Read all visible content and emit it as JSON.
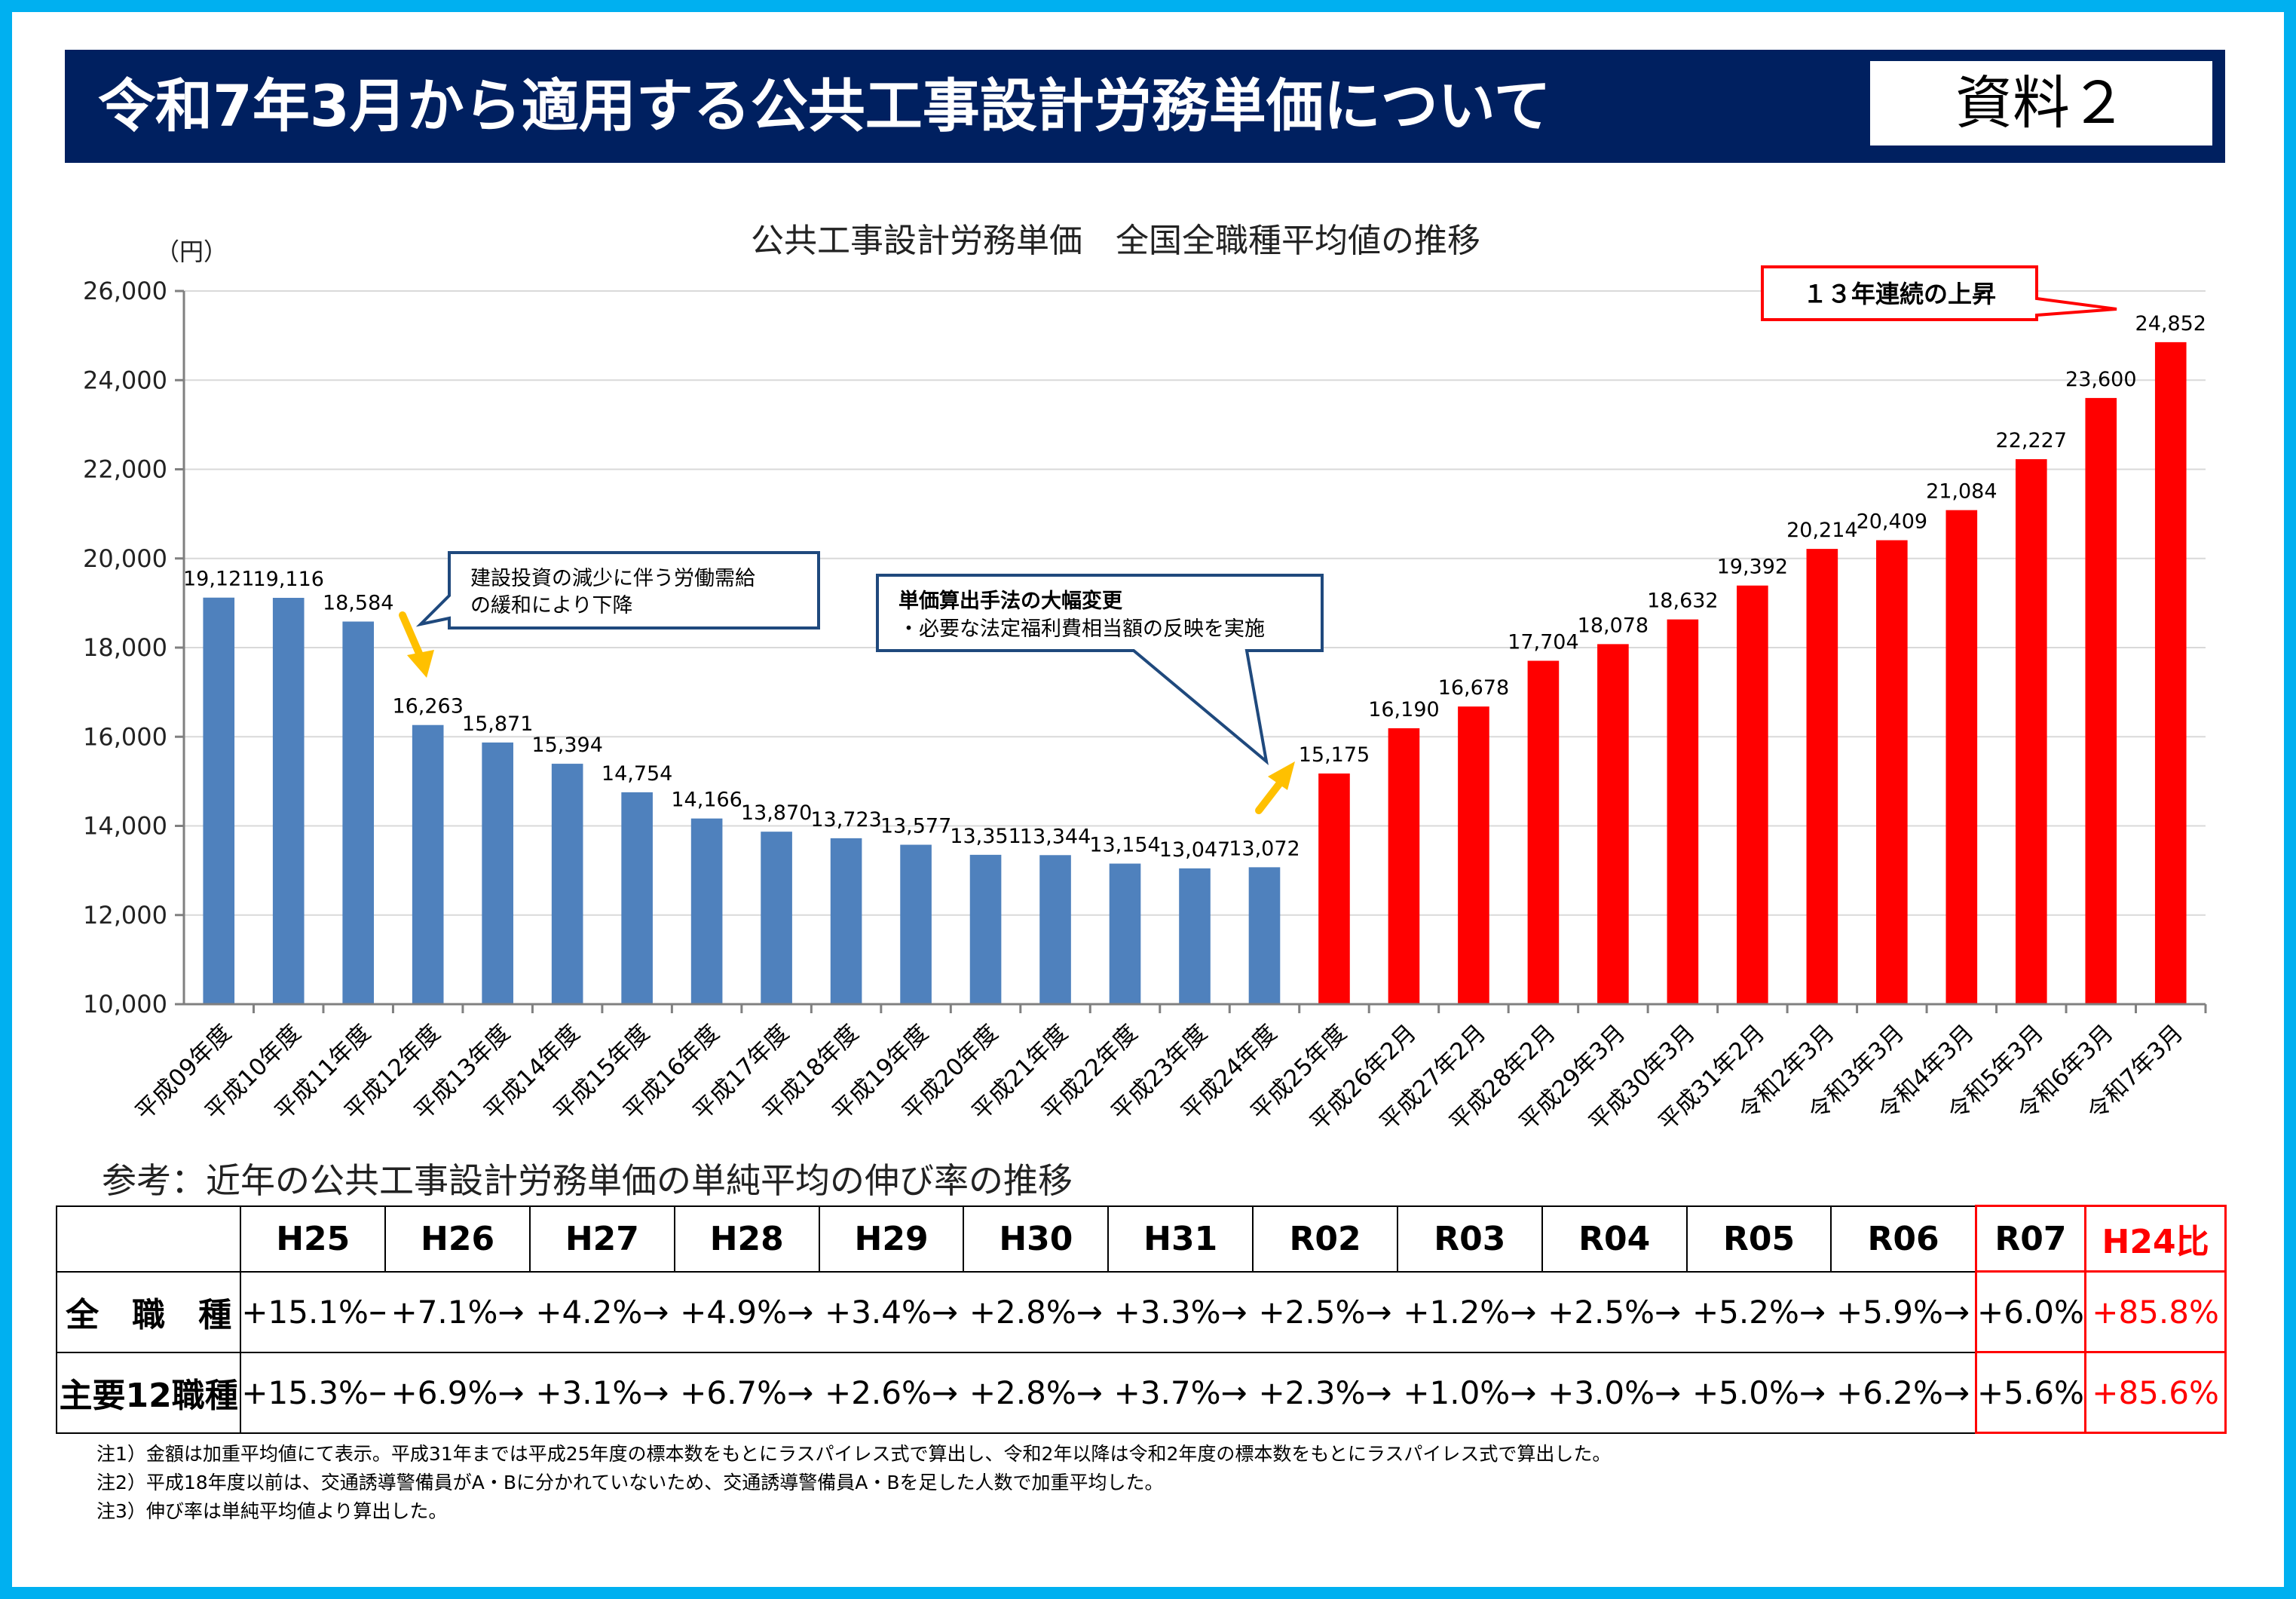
{
  "header": {
    "title": "令和7年3月から適用する公共工事設計労務単価について",
    "doc_tag": "資料２"
  },
  "chart_data": {
    "type": "bar",
    "title": "公共工事設計労務単価　全国全職種平均値の推移",
    "ylabel": "（円）",
    "ylim": [
      10000,
      26000
    ],
    "yticks": [
      "10,000",
      "12,000",
      "14,000",
      "16,000",
      "18,000",
      "20,000",
      "22,000",
      "24,000",
      "26,000"
    ],
    "ytick_values": [
      10000,
      12000,
      14000,
      16000,
      18000,
      20000,
      22000,
      24000,
      26000
    ],
    "categories": [
      "平成09年度",
      "平成10年度",
      "平成11年度",
      "平成12年度",
      "平成13年度",
      "平成14年度",
      "平成15年度",
      "平成16年度",
      "平成17年度",
      "平成18年度",
      "平成19年度",
      "平成20年度",
      "平成21年度",
      "平成22年度",
      "平成23年度",
      "平成24年度",
      "平成25年度",
      "平成26年2月",
      "平成27年2月",
      "平成28年2月",
      "平成29年3月",
      "平成30年3月",
      "平成31年2月",
      "令和2年3月",
      "令和3年3月",
      "令和4年3月",
      "令和5年3月",
      "令和6年3月",
      "令和7年3月"
    ],
    "values": [
      19121,
      19116,
      18584,
      16263,
      15871,
      15394,
      14754,
      14166,
      13870,
      13723,
      13577,
      13351,
      13344,
      13154,
      13047,
      13072,
      15175,
      16190,
      16678,
      17704,
      18078,
      18632,
      19392,
      20214,
      20409,
      21084,
      22227,
      23600,
      24852
    ],
    "value_labels": [
      "19,121",
      "19,116",
      "18,584",
      "16,263",
      "15,871",
      "15,394",
      "14,754",
      "14,166",
      "13,870",
      "13,723",
      "13,577",
      "13,351",
      "13,344",
      "13,154",
      "13,047",
      "13,072",
      "15,175",
      "16,190",
      "16,678",
      "17,704",
      "18,078",
      "18,632",
      "19,392",
      "20,214",
      "20,409",
      "21,084",
      "22,227",
      "23,600",
      "24,852"
    ],
    "colors": {
      "decline": "#4f81bd",
      "rise": "#ff0000",
      "arrow": "#ffc000",
      "callout_border": "#1f497d"
    },
    "rise_start_index": 16,
    "grid": true,
    "annotations": {
      "decline": [
        "建設投資の減少に伴う労働需給",
        "の緩和により下降"
      ],
      "method_title": "単価算出手法の大幅変更",
      "method_detail": "・必要な法定福利費相当額の反映を実施",
      "streak": "１３年連続の上昇"
    }
  },
  "reference": {
    "title": "参考：近年の公共工事設計労務単価の単純平均の伸び率の推移",
    "columns": [
      "H25",
      "H26",
      "H27",
      "H28",
      "H29",
      "H30",
      "H31",
      "R02",
      "R03",
      "R04",
      "R05",
      "R06",
      "R07",
      "H24比"
    ],
    "rows": [
      {
        "label": "全　職　種",
        "values": [
          "+15.1%→",
          "+7.1%→",
          "+4.2%→",
          "+4.9%→",
          "+3.4%→",
          "+2.8%→",
          "+3.3%→",
          "+2.5%→",
          "+1.2%→",
          "+2.5%→",
          "+5.2%→",
          "+5.9%→",
          "+6.0%",
          "+85.8%"
        ]
      },
      {
        "label": "主要12職種",
        "values": [
          "+15.3%→",
          "+6.9%→",
          "+3.1%→",
          "+6.7%→",
          "+2.6%→",
          "+2.8%→",
          "+3.7%→",
          "+2.3%→",
          "+1.0%→",
          "+3.0%→",
          "+5.0%→",
          "+6.2%→",
          "+5.6%",
          "+85.6%"
        ]
      }
    ]
  },
  "notes": [
    "注1）金額は加重平均値にて表示。平成31年までは平成25年度の標本数をもとにラスパイレス式で算出し、令和2年以降は令和2年度の標本数をもとにラスパイレス式で算出した。",
    "注2）平成18年度以前は、交通誘導警備員がA・Bに分かれていないため、交通誘導警備員A・Bを足した人数で加重平均した。",
    "注3）伸び率は単純平均値より算出した。"
  ]
}
